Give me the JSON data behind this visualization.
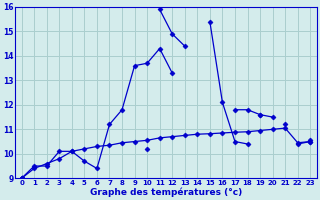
{
  "title": "Graphe des températures (°c)",
  "bg_color": "#d4ecec",
  "grid_color": "#aacece",
  "line_color": "#0000cc",
  "marker": "D",
  "markersize": 2.5,
  "linewidth": 0.9,
  "x": [
    0,
    1,
    2,
    3,
    4,
    5,
    6,
    7,
    8,
    9,
    10,
    11,
    12,
    13,
    14,
    15,
    16,
    17,
    18,
    19,
    20,
    21,
    22,
    23
  ],
  "series1": [
    9.0,
    9.5,
    9.5,
    10.1,
    10.1,
    9.7,
    9.4,
    11.2,
    11.8,
    13.6,
    13.7,
    14.3,
    13.3,
    null,
    null,
    null,
    null,
    null,
    null,
    null,
    null,
    null,
    null,
    null
  ],
  "series2": [
    null,
    null,
    null,
    null,
    null,
    null,
    null,
    null,
    null,
    null,
    null,
    15.9,
    14.9,
    14.4,
    null,
    15.4,
    12.1,
    10.5,
    10.4,
    null,
    null,
    null,
    null,
    null
  ],
  "series3": [
    9.0,
    null,
    null,
    null,
    null,
    null,
    null,
    null,
    null,
    null,
    10.2,
    null,
    null,
    null,
    null,
    null,
    null,
    null,
    null,
    11.6,
    11.5,
    null,
    10.4,
    10.5
  ],
  "series4": [
    9.0,
    9.4,
    9.6,
    9.8,
    10.1,
    10.2,
    10.3,
    10.35,
    10.45,
    10.5,
    10.55,
    10.65,
    10.7,
    10.75,
    10.8,
    10.82,
    10.85,
    10.88,
    10.9,
    10.95,
    11.0,
    11.05,
    10.45,
    10.5
  ],
  "series5": [
    9.0,
    null,
    null,
    null,
    null,
    null,
    null,
    null,
    null,
    null,
    null,
    null,
    null,
    null,
    null,
    null,
    null,
    11.8,
    11.8,
    11.6,
    null,
    11.2,
    null,
    10.55
  ],
  "ylim": [
    9,
    16
  ],
  "xlim": [
    -0.5,
    23.5
  ],
  "yticks": [
    9,
    10,
    11,
    12,
    13,
    14,
    15,
    16
  ],
  "xticks": [
    0,
    1,
    2,
    3,
    4,
    5,
    6,
    7,
    8,
    9,
    10,
    11,
    12,
    13,
    14,
    15,
    16,
    17,
    18,
    19,
    20,
    21,
    22,
    23
  ]
}
